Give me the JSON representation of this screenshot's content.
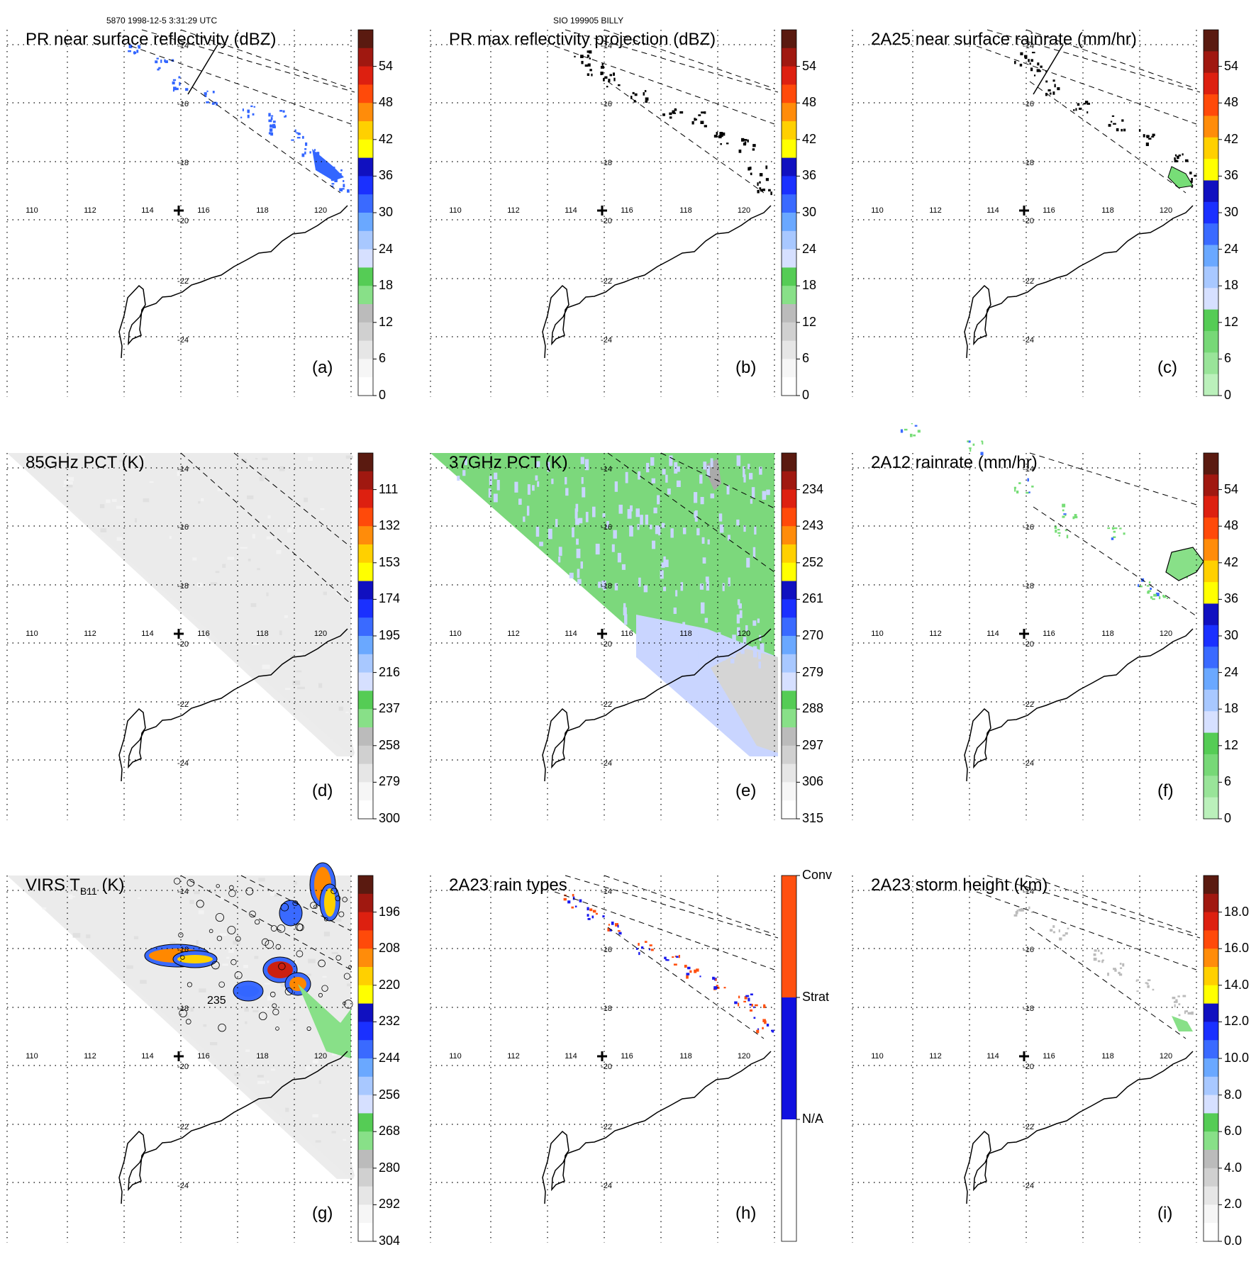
{
  "header": {
    "orbit_time": "5870 1998-12-5 3:31:29 UTC",
    "storm": "SIO 199905 BILLY"
  },
  "axis": {
    "lon_labels": [
      "110",
      "112",
      "114",
      "116",
      "118",
      "120"
    ],
    "lat_labels": [
      "-14",
      "-16",
      "-18",
      "-20",
      "-22",
      "-24"
    ]
  },
  "colors": {
    "coast": "#000000",
    "grid": "#000000",
    "swath": "#000000",
    "pr_blue": "#3366ff",
    "green": "#77dd77",
    "lightblue": "#c8d4ff",
    "gray": "#d8d8d8",
    "orange": "#ff8800",
    "red_orange": "#ff5010",
    "navy": "#1a1aee"
  },
  "panels": [
    {
      "id": "a",
      "title": "PR near surface reflectivity (dBZ)",
      "label": "(a)",
      "colorbar": {
        "type": "continuous",
        "ticks": [
          "54",
          "48",
          "42",
          "36",
          "30",
          "24",
          "18",
          "12",
          "6",
          "0"
        ]
      }
    },
    {
      "id": "b",
      "title": "PR max reflectivity projection (dBZ)",
      "label": "(b)",
      "colorbar": {
        "type": "continuous",
        "ticks": [
          "54",
          "48",
          "42",
          "36",
          "30",
          "24",
          "18",
          "12",
          "6",
          "0"
        ]
      }
    },
    {
      "id": "c",
      "title": "2A25 near surface rainrate (mm/hr)",
      "label": "(c)",
      "colorbar": {
        "type": "rain",
        "ticks": [
          "54",
          "48",
          "42",
          "36",
          "30",
          "24",
          "18",
          "12",
          "6",
          "0"
        ]
      }
    },
    {
      "id": "d",
      "title": "85GHz PCT (K)",
      "label": "(d)",
      "colorbar": {
        "type": "continuous",
        "ticks": [
          "111",
          "132",
          "153",
          "174",
          "195",
          "216",
          "237",
          "258",
          "279",
          "300"
        ]
      }
    },
    {
      "id": "e",
      "title": "37GHz PCT (K)",
      "label": "(e)",
      "colorbar": {
        "type": "continuous",
        "ticks": [
          "234",
          "243",
          "252",
          "261",
          "270",
          "279",
          "288",
          "297",
          "306",
          "315"
        ]
      }
    },
    {
      "id": "f",
      "title": "2A12 rainrate (mm/hr)",
      "label": "(f)",
      "colorbar": {
        "type": "rain",
        "ticks": [
          "54",
          "48",
          "42",
          "36",
          "30",
          "24",
          "18",
          "12",
          "6",
          "0"
        ]
      }
    },
    {
      "id": "g",
      "title_main": "VIRS T",
      "title_sub": "B11",
      "title_units": " (K)",
      "label": "(g)",
      "annotation": "235",
      "colorbar": {
        "type": "continuous",
        "ticks": [
          "196",
          "208",
          "220",
          "232",
          "244",
          "256",
          "268",
          "280",
          "292",
          "304"
        ]
      }
    },
    {
      "id": "h",
      "title": "2A23 rain types",
      "label": "(h)",
      "colorbar": {
        "type": "categorical",
        "ticks": [
          "Conv",
          "Strat",
          "N/A"
        ]
      }
    },
    {
      "id": "i",
      "title": "2A23 storm height (km)",
      "label": "(i)",
      "colorbar": {
        "type": "continuous",
        "ticks": [
          "18.0",
          "16.0",
          "14.0",
          "12.0",
          "10.0",
          "8.0",
          "6.0",
          "4.0",
          "2.0",
          "0.0"
        ]
      }
    }
  ]
}
